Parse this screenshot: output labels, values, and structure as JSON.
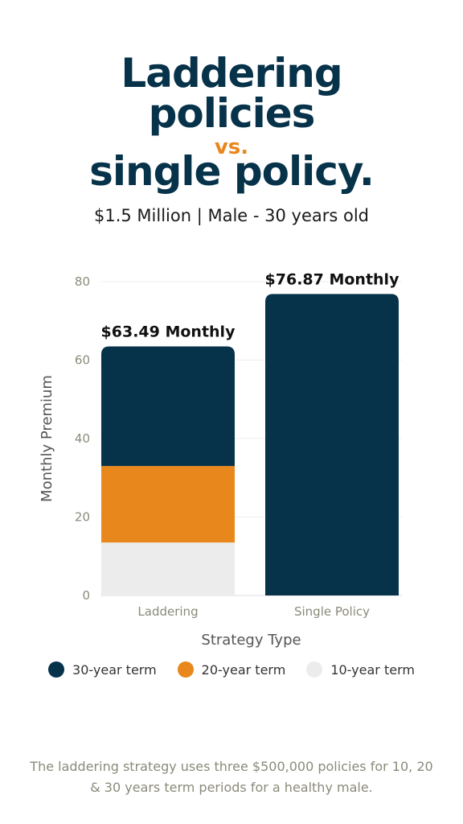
{
  "header": {
    "title_line1": "Laddering",
    "title_line2": "policies",
    "title_vs": "vs.",
    "title_line3": "single policy.",
    "subtitle": "$1.5 Million  |  Male - 30 years old"
  },
  "chart_data": {
    "type": "bar",
    "stacked": true,
    "categories": [
      "Laddering",
      "Single Policy"
    ],
    "series": [
      {
        "name": "10-year term",
        "values": [
          13.5,
          0
        ],
        "color": "#ececec"
      },
      {
        "name": "20-year term",
        "values": [
          19.5,
          0
        ],
        "color": "#e8871b"
      },
      {
        "name": "30-year term",
        "values": [
          30.49,
          76.87
        ],
        "color": "#06324a"
      }
    ],
    "totals": [
      63.49,
      76.87
    ],
    "data_labels": [
      "$63.49 Monthly",
      "$76.87 Monthly"
    ],
    "xlabel": "Strategy Type",
    "ylabel": "Monthly Premium",
    "ylim": [
      0,
      80
    ],
    "yticks": [
      0,
      20,
      40,
      60,
      80
    ],
    "grid": true,
    "legend_placement": "bottom"
  },
  "legend": [
    {
      "label": "30-year term",
      "color": "#06324a"
    },
    {
      "label": "20-year term",
      "color": "#e8871b"
    },
    {
      "label": "10-year term",
      "color": "#ececec"
    }
  ],
  "footnote": "The laddering strategy uses three $500,000 policies for 10, 20 & 30 years term periods for a healthy male."
}
